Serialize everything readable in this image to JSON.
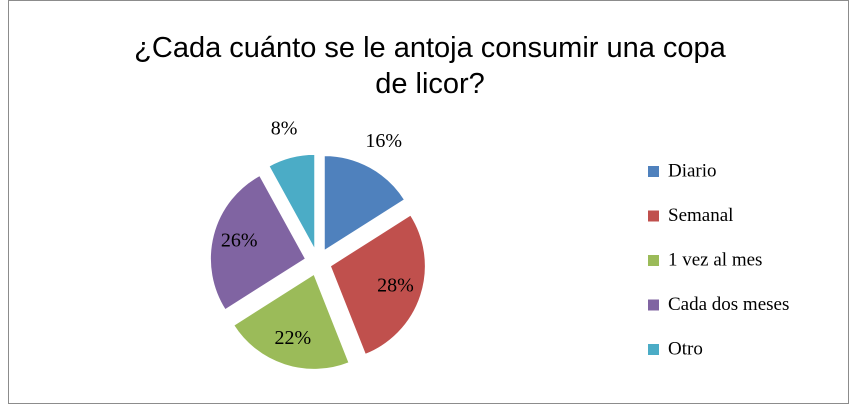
{
  "chart_data": {
    "type": "pie",
    "title": "¿Cada cuánto se le antoja consumir una copa de licor?",
    "categories": [
      "Diario",
      "Semanal",
      "1 vez al mes",
      "Cada dos meses",
      "Otro"
    ],
    "values": [
      16,
      28,
      22,
      26,
      8
    ],
    "value_labels": [
      "16%",
      "28%",
      "22%",
      "26%",
      "8%"
    ],
    "colors": [
      "#4f81bd",
      "#c0504d",
      "#9bbb59",
      "#8064a2",
      "#4bacc6"
    ],
    "exploded": true,
    "legend": "right"
  }
}
